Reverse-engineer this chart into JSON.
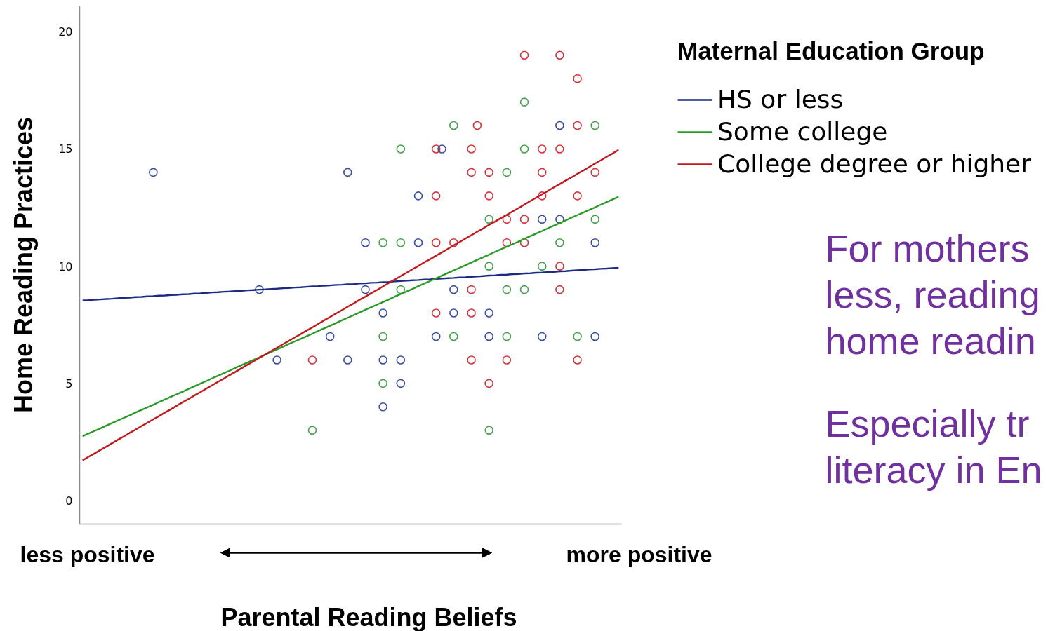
{
  "chart_data": {
    "type": "scatter",
    "ylabel": "Home Reading Practices",
    "xlabel": "Parental Reading Beliefs",
    "legend_title": "Maternal Education Group",
    "legend": "top right",
    "categories": [
      null,
      null,
      null,
      null,
      null,
      null,
      null,
      null,
      null,
      null,
      null,
      null,
      null,
      null,
      null,
      null,
      null,
      null,
      null,
      null,
      null,
      null,
      null,
      null,
      null,
      null,
      null,
      null,
      null,
      null,
      null,
      null,
      null,
      null,
      null,
      null,
      null,
      null,
      null,
      null,
      null,
      null,
      null,
      null,
      null,
      null,
      null,
      null,
      null,
      null,
      null,
      null,
      null,
      null,
      null,
      null,
      null,
      null,
      null,
      null,
      null,
      null,
      null,
      null,
      null,
      null,
      null,
      null,
      null,
      null,
      null,
      null,
      null,
      null,
      null,
      null,
      null,
      null,
      null,
      null,
      null,
      null,
      null,
      null,
      null,
      null,
      null,
      null,
      null,
      null,
      null,
      null
    ],
    "ylim": [
      -1,
      21.1
    ],
    "yticks": [
      0,
      5,
      10,
      15,
      20
    ],
    "series": [
      {
        "color": "#3a4ea6",
        "marker": "circle",
        "values": [
          null,
          null,
          null,
          null,
          null,
          null,
          null,
          null,
          null,
          null,
          null,
          null,
          14,
          null,
          null,
          null,
          null,
          null,
          null,
          null,
          null,
          null,
          null,
          null,
          null,
          null,
          null,
          null,
          null,
          null,
          9,
          null,
          null,
          6,
          null,
          null,
          null,
          null,
          null,
          null,
          null,
          null,
          7,
          null,
          null,
          14,
          null,
          null,
          11,
          null,
          null,
          8,
          null,
          null,
          6,
          null,
          null,
          13,
          null,
          null,
          7,
          15,
          null,
          9,
          null,
          null,
          null,
          null,
          null,
          8,
          null,
          null,
          null,
          null,
          null,
          null,
          null,
          null,
          12,
          null,
          null,
          16,
          null,
          null,
          null,
          null,
          null,
          11,
          null,
          null,
          null,
          null
        ]
      },
      {
        "color": "#3a4ea6",
        "marker": "circle",
        "values": [
          null,
          null,
          null,
          null,
          null,
          null,
          null,
          null,
          null,
          null,
          null,
          null,
          null,
          null,
          null,
          null,
          null,
          null,
          null,
          null,
          null,
          null,
          null,
          null,
          null,
          null,
          null,
          null,
          null,
          null,
          null,
          null,
          null,
          null,
          null,
          null,
          null,
          null,
          null,
          null,
          null,
          null,
          null,
          null,
          null,
          6,
          null,
          null,
          9,
          null,
          null,
          6,
          null,
          null,
          5,
          null,
          null,
          11,
          null,
          null,
          null,
          null,
          null,
          8,
          null,
          null,
          null,
          null,
          null,
          7,
          null,
          null,
          null,
          null,
          null,
          null,
          null,
          null,
          7,
          null,
          null,
          12,
          null,
          null,
          null,
          null,
          null,
          7,
          null,
          null,
          null,
          null
        ]
      },
      {
        "color": "#3a4ea6",
        "marker": "circle",
        "values": [
          null,
          null,
          null,
          null,
          null,
          null,
          null,
          null,
          null,
          null,
          null,
          null,
          null,
          null,
          null,
          null,
          null,
          null,
          null,
          null,
          null,
          null,
          null,
          null,
          null,
          null,
          null,
          null,
          null,
          null,
          null,
          null,
          null,
          null,
          null,
          null,
          null,
          null,
          null,
          null,
          null,
          null,
          null,
          null,
          null,
          null,
          null,
          null,
          null,
          null,
          null,
          4,
          null,
          null,
          null,
          null,
          null,
          null,
          null,
          null,
          null,
          null,
          null,
          null,
          null,
          null,
          null,
          null,
          null,
          null,
          null,
          null,
          null,
          null,
          null,
          null,
          null,
          null,
          null,
          null,
          null,
          null,
          null,
          null,
          null,
          null,
          null,
          null,
          null,
          null,
          null,
          null
        ]
      },
      {
        "color": "#44a34c",
        "marker": "circle",
        "values": [
          null,
          null,
          null,
          null,
          null,
          null,
          null,
          null,
          null,
          null,
          null,
          null,
          null,
          null,
          null,
          null,
          null,
          null,
          null,
          null,
          null,
          null,
          null,
          null,
          null,
          null,
          null,
          null,
          null,
          null,
          null,
          null,
          null,
          null,
          null,
          null,
          null,
          null,
          null,
          3,
          null,
          null,
          null,
          null,
          null,
          null,
          null,
          null,
          null,
          null,
          null,
          11,
          null,
          null,
          15,
          null,
          null,
          null,
          null,
          null,
          null,
          null,
          null,
          16,
          null,
          null,
          null,
          null,
          null,
          12,
          null,
          null,
          14,
          null,
          null,
          17,
          null,
          null,
          10,
          null,
          null,
          11,
          null,
          null,
          7,
          null,
          null,
          16,
          null,
          null,
          null,
          null
        ]
      },
      {
        "color": "#44a34c",
        "marker": "circle",
        "values": [
          null,
          null,
          null,
          null,
          null,
          null,
          null,
          null,
          null,
          null,
          null,
          null,
          null,
          null,
          null,
          null,
          null,
          null,
          null,
          null,
          null,
          null,
          null,
          null,
          null,
          null,
          null,
          null,
          null,
          null,
          null,
          null,
          null,
          null,
          null,
          null,
          null,
          null,
          null,
          null,
          null,
          null,
          null,
          null,
          null,
          null,
          null,
          null,
          null,
          null,
          null,
          7,
          null,
          null,
          11,
          null,
          null,
          null,
          null,
          null,
          null,
          null,
          null,
          7,
          null,
          null,
          null,
          null,
          null,
          10,
          null,
          null,
          9,
          null,
          null,
          15,
          null,
          null,
          null,
          null,
          null,
          null,
          null,
          null,
          null,
          null,
          null,
          12,
          null,
          null,
          null,
          null
        ]
      },
      {
        "color": "#44a34c",
        "marker": "circle",
        "values": [
          null,
          null,
          null,
          null,
          null,
          null,
          null,
          null,
          null,
          null,
          null,
          null,
          null,
          null,
          null,
          null,
          null,
          null,
          null,
          null,
          null,
          null,
          null,
          null,
          null,
          null,
          null,
          null,
          null,
          null,
          null,
          null,
          null,
          null,
          null,
          null,
          null,
          null,
          null,
          null,
          null,
          null,
          null,
          null,
          null,
          null,
          null,
          null,
          null,
          null,
          null,
          5,
          null,
          null,
          9,
          null,
          null,
          null,
          null,
          null,
          null,
          null,
          null,
          null,
          null,
          null,
          null,
          null,
          null,
          3,
          null,
          null,
          7,
          null,
          null,
          9,
          null,
          null,
          null,
          null,
          null,
          null,
          null,
          null,
          null,
          null,
          null,
          null,
          null,
          null,
          null,
          null
        ]
      },
      {
        "color": "#d0363c",
        "marker": "circle",
        "values": [
          null,
          null,
          null,
          null,
          null,
          null,
          null,
          null,
          null,
          null,
          null,
          null,
          null,
          null,
          null,
          null,
          null,
          null,
          null,
          null,
          null,
          null,
          null,
          null,
          null,
          null,
          null,
          null,
          null,
          null,
          null,
          null,
          null,
          null,
          null,
          null,
          null,
          null,
          null,
          6,
          null,
          null,
          null,
          null,
          null,
          null,
          null,
          null,
          null,
          null,
          null,
          null,
          null,
          null,
          null,
          null,
          null,
          null,
          null,
          null,
          15,
          null,
          null,
          11,
          null,
          null,
          15,
          16,
          null,
          14,
          null,
          null,
          12,
          null,
          null,
          19,
          null,
          null,
          15,
          null,
          null,
          19,
          null,
          null,
          18,
          null,
          null,
          14,
          null,
          null,
          null,
          null
        ]
      },
      {
        "color": "#d0363c",
        "marker": "circle",
        "values": [
          null,
          null,
          null,
          null,
          null,
          null,
          null,
          null,
          null,
          null,
          null,
          null,
          null,
          null,
          null,
          null,
          null,
          null,
          null,
          null,
          null,
          null,
          null,
          null,
          null,
          null,
          null,
          null,
          null,
          null,
          null,
          null,
          null,
          null,
          null,
          null,
          null,
          null,
          null,
          null,
          null,
          null,
          null,
          null,
          null,
          null,
          null,
          null,
          null,
          null,
          null,
          null,
          null,
          null,
          null,
          null,
          null,
          null,
          null,
          null,
          13,
          null,
          null,
          null,
          null,
          null,
          14,
          null,
          null,
          13,
          null,
          null,
          11,
          null,
          null,
          12,
          null,
          null,
          14,
          null,
          null,
          15,
          null,
          null,
          16,
          null,
          null,
          null,
          null,
          null,
          null,
          null
        ]
      },
      {
        "color": "#d0363c",
        "marker": "circle",
        "values": [
          null,
          null,
          null,
          null,
          null,
          null,
          null,
          null,
          null,
          null,
          null,
          null,
          null,
          null,
          null,
          null,
          null,
          null,
          null,
          null,
          null,
          null,
          null,
          null,
          null,
          null,
          null,
          null,
          null,
          null,
          null,
          null,
          null,
          null,
          null,
          null,
          null,
          null,
          null,
          null,
          null,
          null,
          null,
          null,
          null,
          null,
          null,
          null,
          null,
          null,
          null,
          null,
          null,
          null,
          null,
          null,
          null,
          null,
          null,
          null,
          11,
          null,
          null,
          null,
          null,
          null,
          9,
          null,
          null,
          5,
          null,
          null,
          6,
          null,
          null,
          11,
          null,
          null,
          13,
          null,
          null,
          10,
          null,
          null,
          13,
          null,
          null,
          null,
          null,
          null,
          null,
          null
        ]
      },
      {
        "color": "#d0363c",
        "marker": "circle",
        "values": [
          null,
          null,
          null,
          null,
          null,
          null,
          null,
          null,
          null,
          null,
          null,
          null,
          null,
          null,
          null,
          null,
          null,
          null,
          null,
          null,
          null,
          null,
          null,
          null,
          null,
          null,
          null,
          null,
          null,
          null,
          null,
          null,
          null,
          null,
          null,
          null,
          null,
          null,
          null,
          null,
          null,
          null,
          null,
          null,
          null,
          null,
          null,
          null,
          null,
          null,
          null,
          null,
          null,
          null,
          null,
          null,
          null,
          null,
          null,
          null,
          8,
          null,
          null,
          null,
          null,
          null,
          8,
          null,
          null,
          null,
          null,
          null,
          null,
          null,
          null,
          null,
          null,
          null,
          null,
          null,
          null,
          9,
          null,
          null,
          6,
          null,
          null,
          null,
          null,
          null,
          null,
          null
        ]
      },
      {
        "color": "#d0363c",
        "marker": "circle",
        "values": [
          null,
          null,
          null,
          null,
          null,
          null,
          null,
          null,
          null,
          null,
          null,
          null,
          null,
          null,
          null,
          null,
          null,
          null,
          null,
          null,
          null,
          null,
          null,
          null,
          null,
          null,
          null,
          null,
          null,
          null,
          null,
          null,
          null,
          null,
          null,
          null,
          null,
          null,
          null,
          null,
          null,
          null,
          null,
          null,
          null,
          null,
          null,
          null,
          null,
          null,
          null,
          null,
          null,
          null,
          null,
          null,
          null,
          null,
          null,
          null,
          null,
          null,
          null,
          null,
          null,
          null,
          6,
          null,
          null,
          null,
          null,
          null,
          null,
          null,
          null,
          null,
          null,
          null,
          null,
          null,
          null,
          null,
          null,
          null,
          null,
          null,
          null,
          null,
          null,
          null,
          null,
          null
        ]
      },
      {
        "type": "line",
        "name": "HS or less",
        "color": "#1b2a84",
        "values": [
          8.54,
          8.55,
          8.57,
          8.58,
          8.6,
          8.61,
          8.63,
          8.65,
          8.66,
          8.68,
          8.69,
          8.71,
          8.72,
          8.74,
          8.75,
          8.77,
          8.78,
          8.8,
          8.81,
          8.83,
          8.84,
          8.86,
          8.88,
          8.89,
          8.91,
          8.92,
          8.94,
          8.95,
          8.97,
          8.98,
          9.0,
          9.01,
          9.03,
          9.04,
          9.06,
          9.07,
          9.09,
          9.1,
          9.12,
          9.14,
          9.15,
          9.17,
          9.18,
          9.2,
          9.21,
          9.23,
          9.24,
          9.26,
          9.27,
          9.29,
          9.3,
          9.32,
          9.33,
          9.35,
          9.37,
          9.38,
          9.4,
          9.41,
          9.43,
          9.44,
          9.46,
          9.47,
          9.49,
          9.5,
          9.52,
          9.53,
          9.55,
          9.56,
          9.58,
          9.6,
          9.61,
          9.63,
          9.64,
          9.66,
          9.67,
          9.69,
          9.7,
          9.72,
          9.73,
          9.75,
          9.76,
          9.78,
          9.79,
          9.81,
          9.83,
          9.84,
          9.86,
          9.87,
          9.89,
          9.9,
          9.92,
          9.93
        ]
      },
      {
        "type": "line",
        "name": "Some college",
        "color": "#2b9a2b",
        "values": [
          2.75,
          2.86,
          2.97,
          3.08,
          3.2,
          3.31,
          3.42,
          3.53,
          3.64,
          3.76,
          3.87,
          3.98,
          4.09,
          4.21,
          4.32,
          4.43,
          4.54,
          4.65,
          4.77,
          4.88,
          4.99,
          5.1,
          5.22,
          5.33,
          5.44,
          5.55,
          5.67,
          5.78,
          5.89,
          6.0,
          6.11,
          6.23,
          6.34,
          6.45,
          6.56,
          6.68,
          6.79,
          6.9,
          7.01,
          7.12,
          7.24,
          7.35,
          7.46,
          7.57,
          7.69,
          7.8,
          7.91,
          8.02,
          8.14,
          8.25,
          8.36,
          8.47,
          8.58,
          8.7,
          8.81,
          8.92,
          9.03,
          9.15,
          9.26,
          9.37,
          9.48,
          9.6,
          9.71,
          9.82,
          9.93,
          10.04,
          10.16,
          10.27,
          10.38,
          10.49,
          10.61,
          10.72,
          10.83,
          10.94,
          11.05,
          11.17,
          11.28,
          11.39,
          11.5,
          11.62,
          11.73,
          11.84,
          11.95,
          12.07,
          12.18,
          12.29,
          12.4,
          12.51,
          12.63,
          12.74,
          12.85,
          12.96
        ]
      },
      {
        "type": "line",
        "name": "College degree or higher",
        "color": "#c01a1f",
        "values": [
          1.72,
          1.87,
          2.01,
          2.16,
          2.3,
          2.45,
          2.6,
          2.74,
          2.89,
          3.03,
          3.18,
          3.32,
          3.47,
          3.61,
          3.76,
          3.9,
          4.05,
          4.2,
          4.34,
          4.49,
          4.63,
          4.78,
          4.92,
          5.07,
          5.21,
          5.36,
          5.5,
          5.65,
          5.8,
          5.94,
          6.09,
          6.23,
          6.38,
          6.52,
          6.67,
          6.81,
          6.96,
          7.1,
          7.25,
          7.39,
          7.54,
          7.69,
          7.83,
          7.98,
          8.12,
          8.27,
          8.41,
          8.56,
          8.7,
          8.85,
          8.99,
          9.14,
          9.29,
          9.43,
          9.58,
          9.72,
          9.87,
          10.01,
          10.16,
          10.3,
          10.45,
          10.59,
          10.74,
          10.89,
          11.03,
          11.18,
          11.32,
          11.47,
          11.61,
          11.76,
          11.9,
          12.05,
          12.19,
          12.34,
          12.48,
          12.63,
          12.78,
          12.92,
          13.07,
          13.21,
          13.36,
          13.5,
          13.65,
          13.79,
          13.94,
          14.08,
          14.23,
          14.38,
          14.52,
          14.67,
          14.81,
          14.96
        ]
      }
    ],
    "annotations": [
      "less positive",
      "more positive",
      "For mothers\nless, reading\nhome readin",
      "Especially tr\nliteracy in En"
    ]
  }
}
